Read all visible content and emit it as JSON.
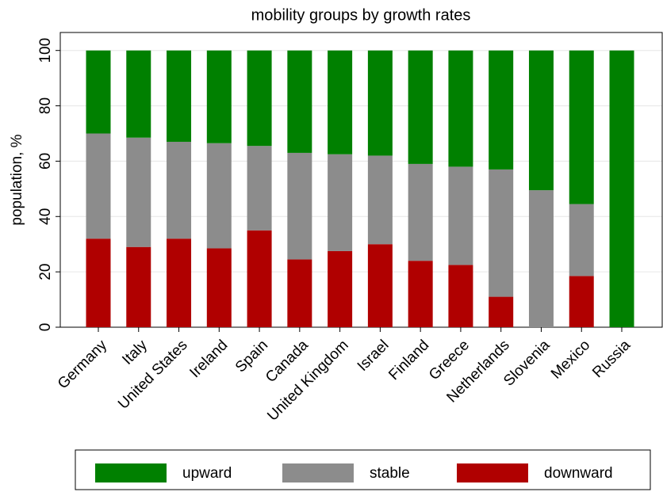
{
  "chart_data": {
    "type": "stacked_bar",
    "title": "mobility groups by growth rates",
    "y_label": "population, %",
    "categories": [
      "Germany",
      "Italy",
      "United States",
      "Ireland",
      "Spain",
      "Canada",
      "United Kingdom",
      "Israel",
      "Finland",
      "Greece",
      "Netherlands",
      "Slovenia",
      "Mexico",
      "Russia"
    ],
    "series": [
      {
        "name": "upward",
        "color": "#008000",
        "values": [
          30,
          31.5,
          33,
          33.5,
          34.5,
          37,
          37.5,
          38,
          41,
          42,
          43,
          50.5,
          55.5,
          100
        ]
      },
      {
        "name": "stable",
        "color": "#8c8c8c",
        "values": [
          38,
          39.5,
          35,
          38,
          30.5,
          38.5,
          35,
          32,
          35,
          35.5,
          46,
          49.5,
          26,
          0
        ]
      },
      {
        "name": "downward",
        "color": "#b00000",
        "values": [
          32,
          29,
          32,
          28.5,
          35,
          24.5,
          27.5,
          30,
          24,
          22.5,
          11,
          0,
          18.5,
          0
        ]
      }
    ],
    "ylim": [
      0,
      106.5
    ],
    "yticks": [
      0,
      20,
      40,
      60,
      80,
      100
    ],
    "grid": true,
    "legend": "bottom"
  }
}
